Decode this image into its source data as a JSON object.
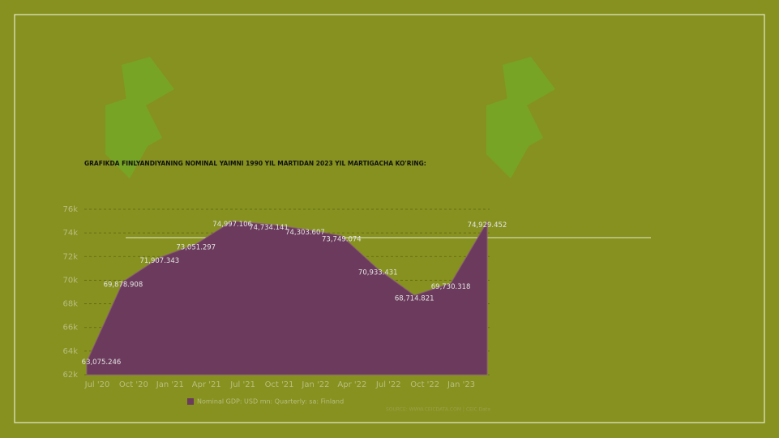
{
  "chart_data": {
    "type": "area",
    "title": "GRAFIKDA FINLYANDIYANING NOMINAL YAIMNI 1990 YIL MARTIDAN 2023 YIL MARTIGACHA KO'RING:",
    "categories": [
      "Jul '20",
      "Oct '20",
      "Jan '21",
      "Apr '21",
      "Jul '21",
      "Oct '21",
      "Jan '22",
      "Apr '22",
      "Jul '22",
      "Oct '22",
      "Jan '23",
      null
    ],
    "series": [
      {
        "name": "Nominal GDP: USD mn: Quarterly: sa: Finland",
        "color": "#6b3a5c",
        "values": [
          63075.246,
          69878.908,
          71907.343,
          73051.297,
          74997.106,
          74734.141,
          74303.607,
          73749.074,
          70933.431,
          68714.821,
          69730.318,
          74929.452
        ],
        "value_labels": [
          "63,075.246",
          "69,878.908",
          "71,907.343",
          "73,051.297",
          "74,997.106",
          "74,734.141",
          "74,303.607",
          "73,749.074",
          "70,933.431",
          "68,714.821",
          "69,730.318",
          "74,929.452"
        ]
      }
    ],
    "ylim": [
      62000,
      76000
    ],
    "yticks": [
      {
        "value": 62000,
        "label": "62k"
      },
      {
        "value": 64000,
        "label": "64k"
      },
      {
        "value": 66000,
        "label": "66k"
      },
      {
        "value": 68000,
        "label": "68k"
      },
      {
        "value": 70000,
        "label": "70k"
      },
      {
        "value": 72000,
        "label": "72k"
      },
      {
        "value": 74000,
        "label": "74k"
      },
      {
        "value": 76000,
        "label": "76k"
      }
    ],
    "grid": true,
    "source": "SOURCE: WWW.CEICDATA.COM | CEIC Data"
  }
}
